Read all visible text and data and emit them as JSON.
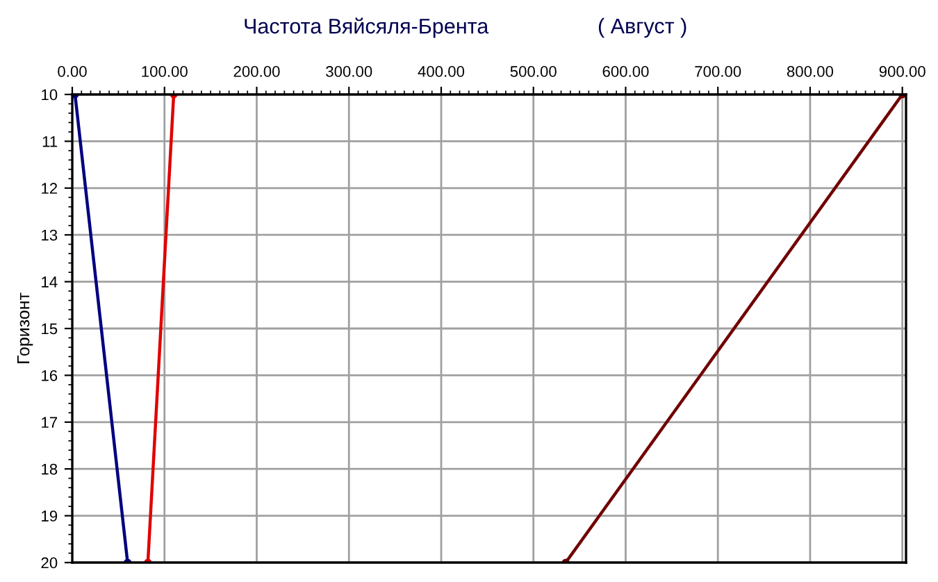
{
  "chart_data": {
    "type": "line",
    "title": "Частота Вяйсяля-Брента",
    "subtitle": "( Август )",
    "ylabel": "Горизонт",
    "series": [
      {
        "color": "#000080",
        "x": [
          3,
          60
        ],
        "values": [
          10,
          20
        ]
      },
      {
        "color": "#e00000",
        "x": [
          110,
          82
        ],
        "values": [
          10,
          20
        ]
      },
      {
        "color": "#700000",
        "x": [
          900,
          535
        ],
        "values": [
          10,
          20
        ]
      }
    ],
    "xlim": [
      0,
      904
    ],
    "xticks": [
      {
        "value": 0,
        "label": "0.00"
      },
      {
        "value": 100,
        "label": "100.00"
      },
      {
        "value": 200,
        "label": "200.00"
      },
      {
        "value": 300,
        "label": "300.00"
      },
      {
        "value": 400,
        "label": "400.00"
      },
      {
        "value": 500,
        "label": "500.00"
      },
      {
        "value": 600,
        "label": "600.00"
      },
      {
        "value": 700,
        "label": "700.00"
      },
      {
        "value": 800,
        "label": "800.00"
      },
      {
        "value": 900,
        "label": "900.00"
      }
    ],
    "ylim": [
      20,
      10
    ],
    "yticks": [
      10,
      11,
      12,
      13,
      14,
      15,
      16,
      17,
      18,
      19,
      20
    ],
    "grid": true,
    "marker": "circle",
    "line_style": "solid"
  }
}
